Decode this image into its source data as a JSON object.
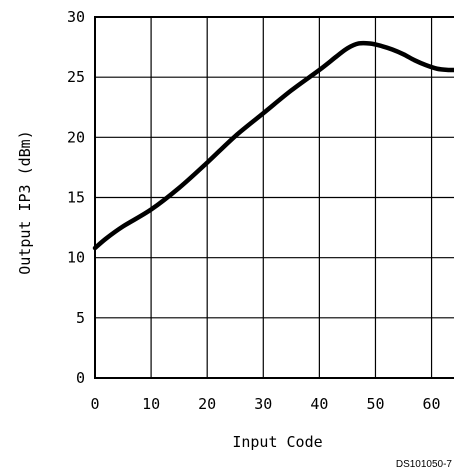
{
  "chart_data": {
    "type": "line",
    "title": "",
    "xlabel": "Input Code",
    "ylabel": "Output IP3 (dBm)",
    "xlim": [
      0,
      64
    ],
    "ylim": [
      0,
      30
    ],
    "grid": true,
    "x_ticks": [
      0,
      10,
      20,
      30,
      40,
      50,
      60
    ],
    "y_ticks": [
      0,
      5,
      10,
      15,
      20,
      25,
      30
    ],
    "x_tick_labels": [
      "0",
      "10",
      "20",
      "30",
      "40",
      "50",
      "60"
    ],
    "y_tick_labels": [
      "0",
      "5",
      "10",
      "15",
      "20",
      "25",
      "30"
    ],
    "series": [
      {
        "x": [
          0,
          2,
          5,
          10,
          15,
          20,
          25,
          30,
          35,
          40,
          43,
          45,
          47,
          49,
          51,
          53,
          55,
          57,
          59,
          61,
          63,
          64
        ],
        "values": [
          10.8,
          11.6,
          12.6,
          14.0,
          15.8,
          17.9,
          20.1,
          22.0,
          23.9,
          25.6,
          26.7,
          27.4,
          27.8,
          27.8,
          27.6,
          27.3,
          26.9,
          26.4,
          26.0,
          25.7,
          25.6,
          25.6
        ]
      }
    ],
    "annotations": [
      "DS101050-7"
    ]
  }
}
